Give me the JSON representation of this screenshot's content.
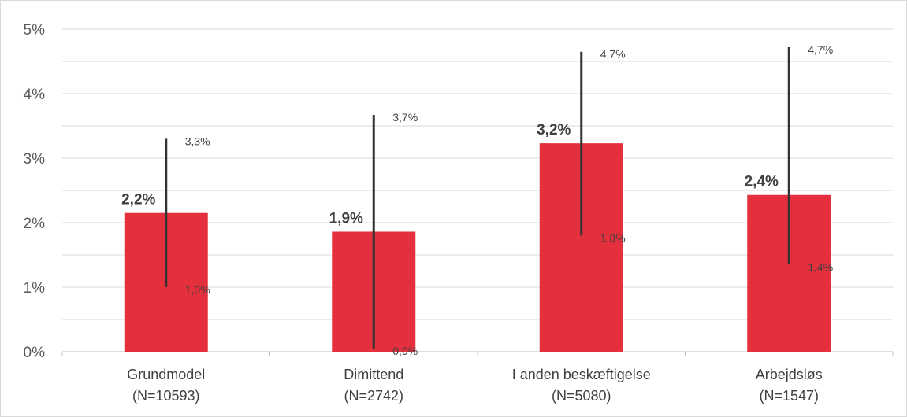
{
  "chart_data": {
    "type": "bar",
    "categories": [
      [
        "Grundmodel",
        "(N=10593)"
      ],
      [
        "Dimittend",
        "(N=2742)"
      ],
      [
        "I anden beskæftigelse",
        "(N=5080)"
      ],
      [
        "Arbejdsløs",
        "(N=1547)"
      ]
    ],
    "values": [
      2.15,
      1.86,
      3.23,
      2.43
    ],
    "value_labels": [
      "2,2%",
      "1,9%",
      "3,2%",
      "2,4%"
    ],
    "error_low": [
      1.0,
      0.05,
      1.8,
      1.35
    ],
    "error_high": [
      3.3,
      3.67,
      4.65,
      4.72
    ],
    "error_low_labels": [
      "1,0%",
      "0,0%",
      "1,8%",
      "1,4%"
    ],
    "error_high_labels": [
      "3,3%",
      "3,7%",
      "4,7%",
      "4,7%"
    ],
    "ylim": [
      0,
      5
    ],
    "yticks": [
      0,
      1,
      2,
      3,
      4,
      5
    ],
    "ytick_labels": [
      "0%",
      "1%",
      "2%",
      "3%",
      "4%",
      "5%"
    ],
    "minor_grid": true,
    "grid": true,
    "bar_color": "#e4303c",
    "error_bar_color": "#333333",
    "grid_color": "#d9d9d9"
  }
}
